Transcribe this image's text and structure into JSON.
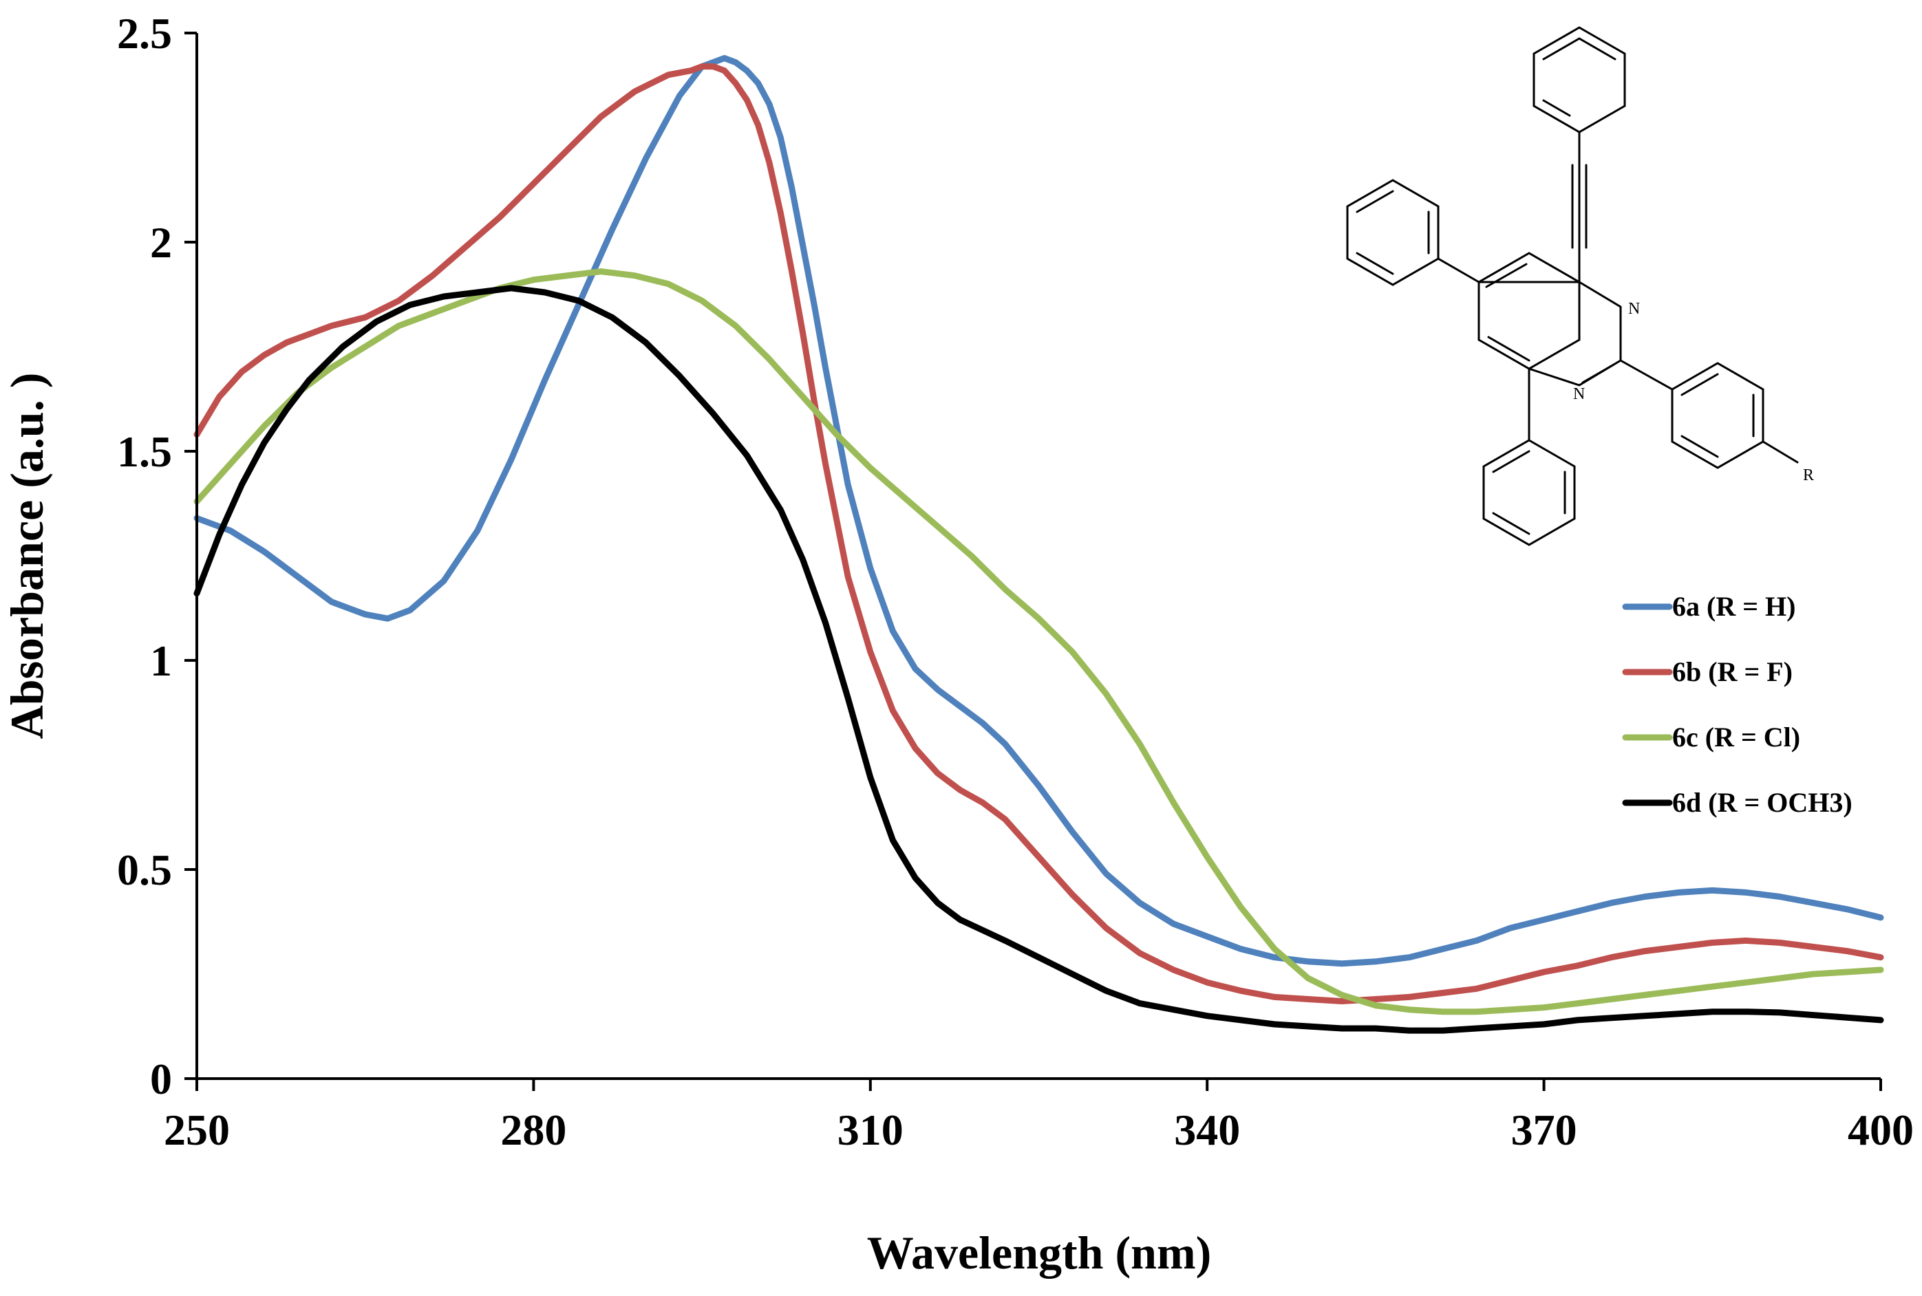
{
  "chart_data": {
    "type": "line",
    "title": "",
    "xlabel": "Wavelength (nm)",
    "ylabel": "Absorbance (a.u. )",
    "xlim": [
      250,
      400
    ],
    "ylim": [
      0,
      2.5
    ],
    "xticks": [
      "250",
      "280",
      "310",
      "340",
      "370",
      "400"
    ],
    "yticks": [
      "0",
      "0.5",
      "1",
      "1.5",
      "2",
      "2.5"
    ],
    "grid": false,
    "legend_position": "right",
    "series": [
      {
        "name": "6a (R = H)",
        "color": "#4f81bd",
        "x": [
          250,
          253,
          256,
          259,
          262,
          265,
          267,
          269,
          272,
          275,
          278,
          281,
          284,
          287,
          290,
          293,
          295,
          296,
          297,
          298,
          299,
          300,
          301,
          302,
          303,
          304,
          305,
          306,
          308,
          310,
          312,
          314,
          316,
          318,
          320,
          322,
          325,
          328,
          331,
          334,
          337,
          340,
          343,
          346,
          349,
          352,
          355,
          358,
          361,
          364,
          367,
          370,
          373,
          376,
          379,
          382,
          385,
          388,
          391,
          394,
          397,
          400
        ],
        "y": [
          1.34,
          1.31,
          1.26,
          1.2,
          1.14,
          1.11,
          1.1,
          1.12,
          1.19,
          1.31,
          1.48,
          1.67,
          1.85,
          2.03,
          2.2,
          2.35,
          2.42,
          2.43,
          2.44,
          2.43,
          2.41,
          2.38,
          2.33,
          2.25,
          2.13,
          1.99,
          1.85,
          1.7,
          1.42,
          1.22,
          1.07,
          0.98,
          0.93,
          0.89,
          0.85,
          0.8,
          0.7,
          0.59,
          0.49,
          0.42,
          0.37,
          0.34,
          0.31,
          0.29,
          0.28,
          0.275,
          0.28,
          0.29,
          0.31,
          0.33,
          0.36,
          0.38,
          0.4,
          0.42,
          0.435,
          0.445,
          0.45,
          0.445,
          0.435,
          0.42,
          0.405,
          0.385
        ]
      },
      {
        "name": "6b (R = F)",
        "color": "#c0504d",
        "x": [
          250,
          252,
          254,
          256,
          258,
          260,
          262,
          265,
          268,
          271,
          274,
          277,
          280,
          283,
          286,
          289,
          292,
          294,
          295,
          296,
          297,
          298,
          299,
          300,
          301,
          302,
          303,
          304,
          305,
          306,
          308,
          310,
          312,
          314,
          316,
          318,
          320,
          322,
          325,
          328,
          331,
          334,
          337,
          340,
          343,
          346,
          349,
          352,
          355,
          358,
          361,
          364,
          367,
          370,
          373,
          376,
          379,
          382,
          385,
          388,
          391,
          394,
          397,
          400
        ],
        "y": [
          1.54,
          1.63,
          1.69,
          1.73,
          1.76,
          1.78,
          1.8,
          1.82,
          1.86,
          1.92,
          1.99,
          2.06,
          2.14,
          2.22,
          2.3,
          2.36,
          2.4,
          2.41,
          2.42,
          2.42,
          2.41,
          2.38,
          2.34,
          2.28,
          2.19,
          2.07,
          1.93,
          1.78,
          1.62,
          1.47,
          1.2,
          1.02,
          0.88,
          0.79,
          0.73,
          0.69,
          0.66,
          0.62,
          0.53,
          0.44,
          0.36,
          0.3,
          0.26,
          0.23,
          0.21,
          0.195,
          0.19,
          0.185,
          0.19,
          0.195,
          0.205,
          0.215,
          0.235,
          0.255,
          0.27,
          0.29,
          0.305,
          0.315,
          0.325,
          0.33,
          0.325,
          0.315,
          0.305,
          0.29
        ]
      },
      {
        "name": "6c (R = Cl)",
        "color": "#9bbb59",
        "x": [
          250,
          253,
          256,
          259,
          262,
          265,
          268,
          271,
          274,
          277,
          280,
          283,
          286,
          289,
          292,
          295,
          298,
          301,
          304,
          307,
          310,
          313,
          316,
          319,
          322,
          325,
          328,
          331,
          334,
          337,
          340,
          343,
          346,
          349,
          352,
          355,
          358,
          361,
          364,
          367,
          370,
          373,
          376,
          379,
          382,
          385,
          388,
          391,
          394,
          397,
          400
        ],
        "y": [
          1.38,
          1.47,
          1.56,
          1.64,
          1.7,
          1.75,
          1.8,
          1.83,
          1.86,
          1.89,
          1.91,
          1.92,
          1.93,
          1.92,
          1.9,
          1.86,
          1.8,
          1.72,
          1.63,
          1.54,
          1.46,
          1.39,
          1.32,
          1.25,
          1.17,
          1.1,
          1.02,
          0.92,
          0.8,
          0.66,
          0.53,
          0.41,
          0.31,
          0.24,
          0.2,
          0.175,
          0.165,
          0.16,
          0.16,
          0.165,
          0.17,
          0.18,
          0.19,
          0.2,
          0.21,
          0.22,
          0.23,
          0.24,
          0.25,
          0.255,
          0.26
        ]
      },
      {
        "name": "6d (R = OCH3)",
        "color": "#000000",
        "x": [
          250,
          252,
          254,
          256,
          258,
          260,
          263,
          266,
          269,
          272,
          275,
          278,
          281,
          284,
          287,
          290,
          293,
          296,
          299,
          302,
          304,
          306,
          308,
          310,
          312,
          314,
          316,
          318,
          320,
          322,
          325,
          328,
          331,
          334,
          337,
          340,
          343,
          346,
          349,
          352,
          355,
          358,
          361,
          364,
          367,
          370,
          373,
          376,
          379,
          382,
          385,
          388,
          391,
          394,
          397,
          400
        ],
        "y": [
          1.16,
          1.3,
          1.42,
          1.52,
          1.6,
          1.67,
          1.75,
          1.81,
          1.85,
          1.87,
          1.88,
          1.89,
          1.88,
          1.86,
          1.82,
          1.76,
          1.68,
          1.59,
          1.49,
          1.36,
          1.24,
          1.09,
          0.91,
          0.72,
          0.57,
          0.48,
          0.42,
          0.38,
          0.355,
          0.33,
          0.29,
          0.25,
          0.21,
          0.18,
          0.165,
          0.15,
          0.14,
          0.13,
          0.125,
          0.12,
          0.12,
          0.115,
          0.115,
          0.12,
          0.125,
          0.13,
          0.14,
          0.145,
          0.15,
          0.155,
          0.16,
          0.16,
          0.158,
          0.152,
          0.146,
          0.14
        ]
      }
    ],
    "annotations": {
      "atom_labels": [
        "N",
        "N",
        "R"
      ]
    }
  }
}
